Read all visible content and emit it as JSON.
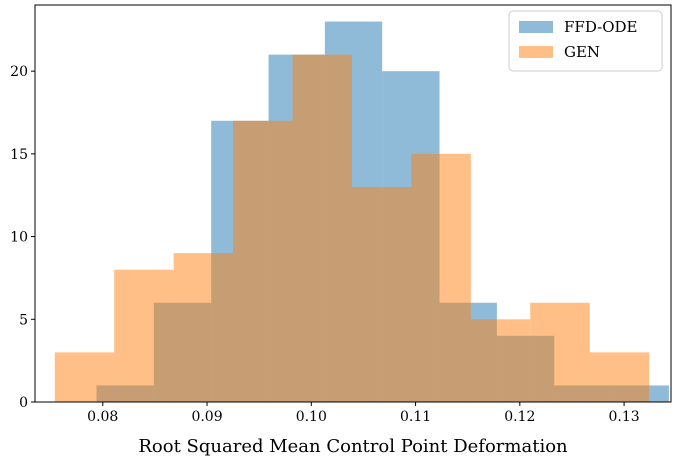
{
  "chart_data": {
    "type": "bar",
    "title": "",
    "xlabel": "Root Squared Mean Control Point Deformation",
    "ylabel": "",
    "xlim": [
      0.0735,
      0.1345
    ],
    "ylim": [
      0,
      24
    ],
    "xticks": [
      0.08,
      0.09,
      0.1,
      0.11,
      0.12,
      0.13
    ],
    "xtick_labels": [
      "0.08",
      "0.09",
      "0.10",
      "0.11",
      "0.12",
      "0.13"
    ],
    "yticks": [
      0,
      5,
      10,
      15,
      20
    ],
    "ytick_labels": [
      "0",
      "5",
      "10",
      "15",
      "20"
    ],
    "grid": false,
    "legend_position": "top-right",
    "series": [
      {
        "name": "FFD-ODE",
        "color": "#1f77b4",
        "opacity": 0.5,
        "bin_edges": [
          0.0794,
          0.0849,
          0.0904,
          0.0959,
          0.1013,
          0.1068,
          0.1123,
          0.1178,
          0.1233,
          0.1288,
          0.1343
        ],
        "counts": [
          1,
          6,
          17,
          21,
          23,
          20,
          6,
          4,
          1,
          1
        ]
      },
      {
        "name": "GEN",
        "color": "#ff7f0e",
        "opacity": 0.5,
        "bin_edges": [
          0.0754,
          0.0811,
          0.0868,
          0.0925,
          0.0982,
          0.1039,
          0.1096,
          0.1153,
          0.121,
          0.1267,
          0.1324
        ],
        "counts": [
          3,
          8,
          9,
          17,
          21,
          13,
          15,
          5,
          6,
          3
        ]
      }
    ]
  }
}
